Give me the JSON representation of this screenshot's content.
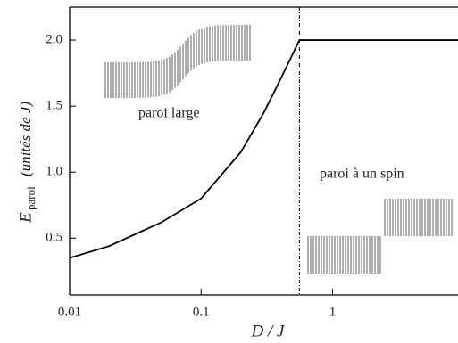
{
  "chart_data": {
    "type": "line",
    "xlabel": "D / J",
    "ylabel": "E",
    "ylabel_subscript": "paroi",
    "ylabel_unit": "(unités de J)",
    "annotations": [
      "paroi large",
      "paroi à un spin"
    ],
    "x": [
      0.01,
      0.02,
      0.05,
      0.1,
      0.2,
      0.3,
      0.4,
      0.56,
      1,
      9
    ],
    "series": [
      {
        "name": "E_paroi",
        "color": "#000000",
        "values": [
          0.35,
          0.44,
          0.62,
          0.8,
          1.15,
          1.45,
          1.7,
          2.0,
          2.0,
          2.0
        ]
      }
    ],
    "vline": 0.56,
    "xscale": "log",
    "xlim": [
      0.01,
      9
    ],
    "ylim": [
      0.07,
      2.25
    ],
    "xticks": [
      0.01,
      0.1,
      1
    ],
    "yticks": [
      0.5,
      {
        "value": 1,
        "label": "1.0"
      },
      1.5,
      {
        "value": 2,
        "label": "2.0"
      }
    ]
  }
}
